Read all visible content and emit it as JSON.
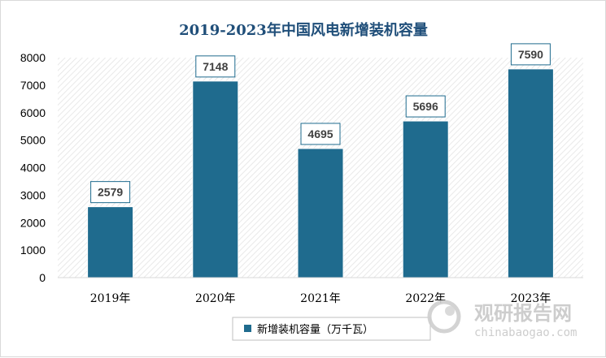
{
  "chart_data": {
    "type": "bar",
    "title": "2019-2023年中国风电新增装机容量",
    "categories": [
      "2019年",
      "2020年",
      "2021年",
      "2022年",
      "2023年"
    ],
    "series": [
      {
        "name": "新增装机容量（万千瓦）",
        "values": [
          2579,
          7148,
          4695,
          5696,
          7590
        ]
      }
    ],
    "ylim": [
      0,
      8000
    ],
    "yticks": [
      0,
      1000,
      2000,
      3000,
      4000,
      5000,
      6000,
      7000,
      8000
    ],
    "grid": false,
    "legend_position": "bottom-left",
    "data_labels": true,
    "bar_color": "#1f6b8e",
    "title_color": "#1f4e79"
  },
  "watermark": {
    "text": "观研报告网",
    "url": "chinabaogao.com"
  }
}
